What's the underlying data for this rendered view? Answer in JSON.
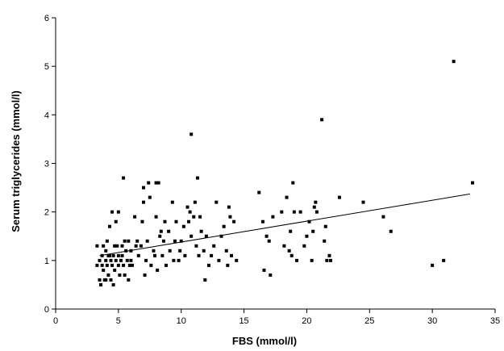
{
  "chart_data": {
    "type": "scatter",
    "title": "",
    "xlabel": "FBS (mmol/l)",
    "ylabel": "Serum triglycerides (mmol/l)",
    "xlim": [
      0,
      35
    ],
    "ylim": [
      0,
      6
    ],
    "xticks": [
      0,
      5,
      10,
      15,
      20,
      25,
      30,
      35
    ],
    "yticks": [
      0,
      1,
      2,
      3,
      4,
      5,
      6
    ],
    "grid": false,
    "legend": "none",
    "marker_color": "#000000",
    "points": [
      [
        3.3,
        0.9
      ],
      [
        3.3,
        1.3
      ],
      [
        3.5,
        1.0
      ],
      [
        3.5,
        0.6
      ],
      [
        3.6,
        0.5
      ],
      [
        3.7,
        1.1
      ],
      [
        3.7,
        0.9
      ],
      [
        3.8,
        1.3
      ],
      [
        3.8,
        0.8
      ],
      [
        3.9,
        0.6
      ],
      [
        4.0,
        1.2
      ],
      [
        4.0,
        1.0
      ],
      [
        4.0,
        0.6
      ],
      [
        4.1,
        1.4
      ],
      [
        4.1,
        0.9
      ],
      [
        4.2,
        1.1
      ],
      [
        4.2,
        0.7
      ],
      [
        4.3,
        1.7
      ],
      [
        4.3,
        1.1
      ],
      [
        4.4,
        0.6
      ],
      [
        4.4,
        1.0
      ],
      [
        4.5,
        2.0
      ],
      [
        4.5,
        0.9
      ],
      [
        4.6,
        1.1
      ],
      [
        4.6,
        0.5
      ],
      [
        4.7,
        1.3
      ],
      [
        4.7,
        0.8
      ],
      [
        4.8,
        1.8
      ],
      [
        4.8,
        1.0
      ],
      [
        4.9,
        1.3
      ],
      [
        5.0,
        2.0
      ],
      [
        5.0,
        1.1
      ],
      [
        5.0,
        0.9
      ],
      [
        5.1,
        0.7
      ],
      [
        5.2,
        1.0
      ],
      [
        5.3,
        1.3
      ],
      [
        5.3,
        1.1
      ],
      [
        5.4,
        2.7
      ],
      [
        5.4,
        0.9
      ],
      [
        5.5,
        1.4
      ],
      [
        5.5,
        0.7
      ],
      [
        5.6,
        1.2
      ],
      [
        5.7,
        1.0
      ],
      [
        5.8,
        1.4
      ],
      [
        5.8,
        0.6
      ],
      [
        5.9,
        0.9
      ],
      [
        6.0,
        1.2
      ],
      [
        6.0,
        1.0
      ],
      [
        6.1,
        0.9
      ],
      [
        6.3,
        1.9
      ],
      [
        6.4,
        1.3
      ],
      [
        6.5,
        1.4
      ],
      [
        6.6,
        1.1
      ],
      [
        6.8,
        1.3
      ],
      [
        6.9,
        1.8
      ],
      [
        7.0,
        2.5
      ],
      [
        7.0,
        2.2
      ],
      [
        7.1,
        0.7
      ],
      [
        7.2,
        1.0
      ],
      [
        7.3,
        1.4
      ],
      [
        7.4,
        2.6
      ],
      [
        7.5,
        2.3
      ],
      [
        7.6,
        0.9
      ],
      [
        7.8,
        1.2
      ],
      [
        7.9,
        1.1
      ],
      [
        8.0,
        2.6
      ],
      [
        8.0,
        1.9
      ],
      [
        8.1,
        0.8
      ],
      [
        8.2,
        2.6
      ],
      [
        8.3,
        1.5
      ],
      [
        8.4,
        1.6
      ],
      [
        8.5,
        1.1
      ],
      [
        8.6,
        1.4
      ],
      [
        8.7,
        1.8
      ],
      [
        8.8,
        0.9
      ],
      [
        9.0,
        1.6
      ],
      [
        9.1,
        1.2
      ],
      [
        9.3,
        2.2
      ],
      [
        9.4,
        1.0
      ],
      [
        9.5,
        1.4
      ],
      [
        9.6,
        1.8
      ],
      [
        9.8,
        1.0
      ],
      [
        9.9,
        1.2
      ],
      [
        10.0,
        1.4
      ],
      [
        10.2,
        1.7
      ],
      [
        10.3,
        1.1
      ],
      [
        10.5,
        2.1
      ],
      [
        10.6,
        1.8
      ],
      [
        10.7,
        2.0
      ],
      [
        10.8,
        1.5
      ],
      [
        10.8,
        3.6
      ],
      [
        11.0,
        1.9
      ],
      [
        11.1,
        2.2
      ],
      [
        11.2,
        1.3
      ],
      [
        11.3,
        2.7
      ],
      [
        11.4,
        1.1
      ],
      [
        11.5,
        1.9
      ],
      [
        11.6,
        1.6
      ],
      [
        11.8,
        1.2
      ],
      [
        11.9,
        0.6
      ],
      [
        12.0,
        1.5
      ],
      [
        12.2,
        0.9
      ],
      [
        12.4,
        1.1
      ],
      [
        12.6,
        1.3
      ],
      [
        12.8,
        2.2
      ],
      [
        13.0,
        1.0
      ],
      [
        13.2,
        1.5
      ],
      [
        13.4,
        1.7
      ],
      [
        13.6,
        1.2
      ],
      [
        13.7,
        0.9
      ],
      [
        13.8,
        2.1
      ],
      [
        13.9,
        1.9
      ],
      [
        14.0,
        1.1
      ],
      [
        14.2,
        1.8
      ],
      [
        14.4,
        1.0
      ],
      [
        16.2,
        2.4
      ],
      [
        16.5,
        1.8
      ],
      [
        16.6,
        0.8
      ],
      [
        16.8,
        1.5
      ],
      [
        17.0,
        1.4
      ],
      [
        17.1,
        0.7
      ],
      [
        17.3,
        1.9
      ],
      [
        18.0,
        2.0
      ],
      [
        18.2,
        1.3
      ],
      [
        18.4,
        2.3
      ],
      [
        18.6,
        1.2
      ],
      [
        18.7,
        1.6
      ],
      [
        18.8,
        1.1
      ],
      [
        18.9,
        2.6
      ],
      [
        19.0,
        2.0
      ],
      [
        19.2,
        1.0
      ],
      [
        19.5,
        2.0
      ],
      [
        19.8,
        1.3
      ],
      [
        20.0,
        1.5
      ],
      [
        20.2,
        1.8
      ],
      [
        20.4,
        1.0
      ],
      [
        20.5,
        1.6
      ],
      [
        20.6,
        2.1
      ],
      [
        20.7,
        2.2
      ],
      [
        20.8,
        2.0
      ],
      [
        21.2,
        3.9
      ],
      [
        21.4,
        1.4
      ],
      [
        21.5,
        1.7
      ],
      [
        21.6,
        1.0
      ],
      [
        21.8,
        1.1
      ],
      [
        21.9,
        1.0
      ],
      [
        22.6,
        2.3
      ],
      [
        24.5,
        2.2
      ],
      [
        26.1,
        1.9
      ],
      [
        26.7,
        1.6
      ],
      [
        30.0,
        0.9
      ],
      [
        30.9,
        1.0
      ],
      [
        31.7,
        5.1
      ],
      [
        33.2,
        2.6
      ]
    ],
    "trendline": {
      "x": [
        3.5,
        33
      ],
      "y": [
        1.1,
        2.37
      ]
    }
  }
}
